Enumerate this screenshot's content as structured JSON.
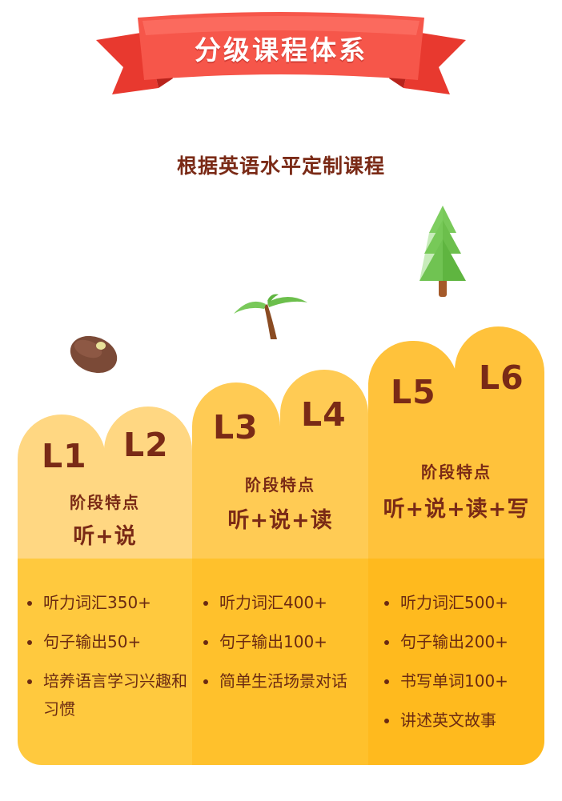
{
  "banner": {
    "title": "分级课程体系"
  },
  "subtitle": "根据英语水平定制课程",
  "levels": [
    {
      "codes": [
        "L1",
        "L2"
      ],
      "feature_label": "阶段特点",
      "feature_value": "听+说",
      "items": [
        "听力词汇350+",
        "句子输出50+",
        "培养语言学习兴趣和习惯"
      ]
    },
    {
      "codes": [
        "L3",
        "L4"
      ],
      "feature_label": "阶段特点",
      "feature_value": "听+说+读",
      "items": [
        "听力词汇400+",
        "句子输出100+",
        "简单生活场景对话"
      ]
    },
    {
      "codes": [
        "L5",
        "L6"
      ],
      "feature_label": "阶段特点",
      "feature_value": "听+说+读+写",
      "items": [
        "听力词汇500+",
        "句子输出200+",
        "书写单词100+",
        "讲述英文故事"
      ]
    }
  ],
  "decorations": [
    "tree-icon",
    "palm-tree-icon",
    "bean-icon"
  ],
  "colors": {
    "ribbon": "#f24b3f",
    "text": "#7a2a16",
    "tier1": "#ffd782",
    "tier2": "#ffcb54",
    "tier3": "#ffc23b"
  }
}
